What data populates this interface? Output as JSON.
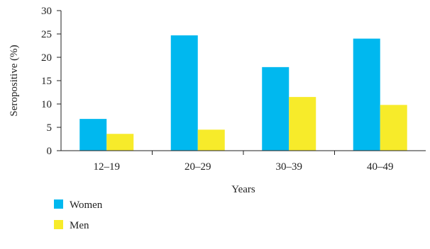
{
  "chart_data": {
    "type": "bar",
    "categories": [
      "12–19",
      "20–29",
      "30–39",
      "40–49"
    ],
    "series": [
      {
        "name": "Women",
        "color": "#00b8ef",
        "values": [
          6.8,
          24.7,
          17.9,
          24.0
        ]
      },
      {
        "name": "Men",
        "color": "#f7eb2a",
        "values": [
          3.6,
          4.5,
          11.5,
          9.8
        ]
      }
    ],
    "xlabel": "Years",
    "ylabel": "Seropositive (%)",
    "ylim": [
      0,
      30
    ],
    "yticks": [
      0,
      5,
      10,
      15,
      20,
      25,
      30
    ],
    "grid": false,
    "legend_position": "bottom-left"
  }
}
